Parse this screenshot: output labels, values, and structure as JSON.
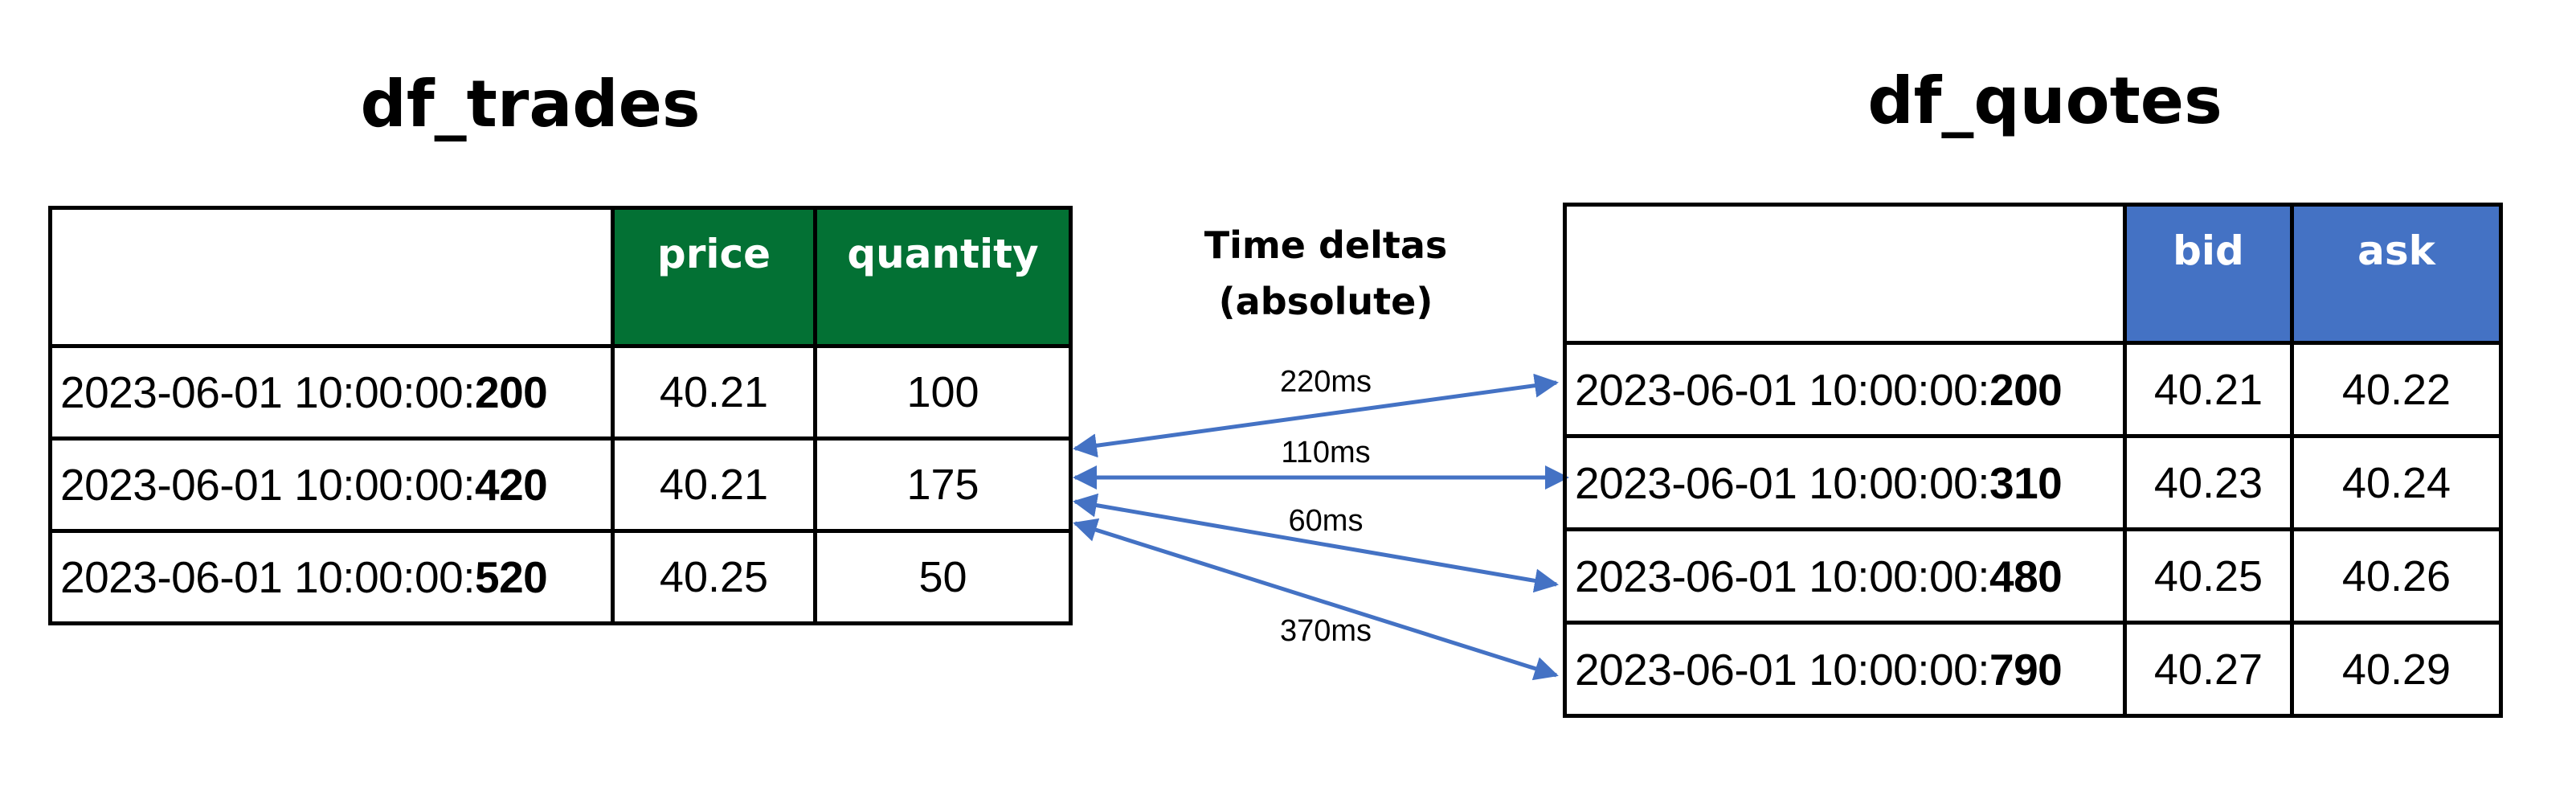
{
  "trades": {
    "title": "df_trades",
    "columns": [
      "",
      "price",
      "quantity"
    ],
    "rows": [
      {
        "ts_prefix": "2023-06-01 10:00:00:",
        "ts_ms": "200",
        "price": "40.21",
        "quantity": "100"
      },
      {
        "ts_prefix": "2023-06-01 10:00:00:",
        "ts_ms": "420",
        "price": "40.21",
        "quantity": "175"
      },
      {
        "ts_prefix": "2023-06-01 10:00:00:",
        "ts_ms": "520",
        "price": "40.25",
        "quantity": "50"
      }
    ],
    "header_color": "#037134"
  },
  "quotes": {
    "title": "df_quotes",
    "columns": [
      "",
      "bid",
      "ask"
    ],
    "rows": [
      {
        "ts_prefix": "2023-06-01 10:00:00:",
        "ts_ms": "200",
        "bid": "40.21",
        "ask": "40.22"
      },
      {
        "ts_prefix": "2023-06-01 10:00:00:",
        "ts_ms": "310",
        "bid": "40.23",
        "ask": "40.24"
      },
      {
        "ts_prefix": "2023-06-01 10:00:00:",
        "ts_ms": "480",
        "bid": "40.25",
        "ask": "40.26"
      },
      {
        "ts_prefix": "2023-06-01 10:00:00:",
        "ts_ms": "790",
        "bid": "40.27",
        "ask": "40.29"
      }
    ],
    "header_color": "#4472C4"
  },
  "deltas": {
    "title_line1": "Time deltas",
    "title_line2": "(absolute)",
    "arrow_color": "#4472C4",
    "labels": [
      "220ms",
      "110ms",
      "60ms",
      "370ms"
    ]
  }
}
